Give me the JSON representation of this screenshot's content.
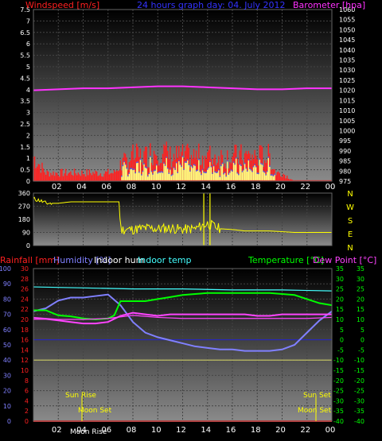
{
  "colors": {
    "wind": "#ff2020",
    "gust_fill": "#ffff80",
    "wind_avg": "#4060ff",
    "baro": "#ff33ff",
    "title": "#3333ff",
    "direction": "#ffff00",
    "rain": "#ff2020",
    "humidity": "#8080ff",
    "in_hum": "#ff44ff",
    "in_temp": "#44ffff",
    "temp": "#00ff00",
    "dew": "#ff44ff",
    "sun": "#ffff00"
  },
  "top": {
    "left_label": "Windspeed [m/s]",
    "title": "24 hours graph day: 04. July 2012",
    "right_label": "Barometer [hpa]",
    "left_ticks": [
      "0",
      "0.5",
      "1",
      "1.5",
      "2",
      "2.5",
      "3",
      "3.5",
      "4",
      "4.5",
      "5",
      "5.5",
      "6",
      "6.5",
      "7",
      "7.5"
    ],
    "right_ticks": [
      "975",
      "980",
      "985",
      "990",
      "995",
      "1000",
      "1005",
      "1010",
      "1015",
      "1020",
      "1025",
      "1030",
      "1035",
      "1040",
      "1045",
      "1050",
      "1055",
      "1060"
    ],
    "x_ticks": [
      "02",
      "04",
      "06",
      "08",
      "10",
      "12",
      "14",
      "16",
      "18",
      "20",
      "22",
      "00"
    ]
  },
  "dir": {
    "left_ticks": [
      "0",
      "90",
      "180",
      "270",
      "360"
    ],
    "right_labels": [
      "N",
      "W",
      "S",
      "E",
      "N"
    ]
  },
  "bottom": {
    "rain_label": "Rainfall [mm]",
    "hum_label": "Humidity [%]",
    "inhum_label": "Indoor hum",
    "intemp_label": "Indoor temp",
    "temp_label": "Temperature [°C]",
    "dew_label": "Dew Point [°C]",
    "hum_ticks": [
      "0",
      "10",
      "20",
      "30",
      "40",
      "50",
      "60",
      "70",
      "80",
      "90",
      "100"
    ],
    "rain_ticks": [
      "0",
      "2",
      "4",
      "6",
      "8",
      "10",
      "12",
      "14",
      "16",
      "18",
      "20",
      "22",
      "24",
      "26",
      "28",
      "30"
    ],
    "temp_ticks_a": [
      "-40",
      "-35",
      "-30",
      "-25",
      "-20",
      "-15",
      "-10",
      "-5",
      "0",
      "5",
      "10",
      "15",
      "20",
      "25",
      "30",
      "35"
    ],
    "temp_ticks_b": [
      "-40",
      "-35",
      "-30",
      "-25",
      "-20",
      "-15",
      "-10",
      "-5",
      "0",
      "5",
      "10",
      "15",
      "20",
      "25",
      "30",
      "35"
    ],
    "x_ticks": [
      "02",
      "04",
      "06",
      "08",
      "10",
      "12",
      "14",
      "16",
      "18",
      "20",
      "22",
      "00"
    ],
    "sun_rise": "Sun Rise",
    "sun_set": "Sun Set",
    "moon_set": "Moon Set",
    "moon_rise": "Moon Rise"
  },
  "chart_data": [
    {
      "type": "line",
      "title": "24 hours graph day: 04. July 2012",
      "xlabel": "",
      "ylabel": "Windspeed [m/s]",
      "y2label": "Barometer [hpa]",
      "x_unit": "hours",
      "ylim": [
        0,
        7.5
      ],
      "y2lim": [
        975,
        1060
      ],
      "series": [
        {
          "name": "Barometer [hpa]",
          "axis": "right",
          "x": [
            0,
            2,
            4,
            6,
            8,
            10,
            12,
            14,
            16,
            18,
            20,
            22,
            24
          ],
          "values": [
            1020,
            1020.5,
            1021,
            1021,
            1021.5,
            1022,
            1022,
            1021.5,
            1021,
            1020.5,
            1020.5,
            1021,
            1021
          ]
        },
        {
          "name": "Windspeed [m/s]",
          "axis": "left",
          "x": [
            0,
            1,
            2,
            3,
            4,
            5,
            6,
            6.5,
            7,
            8,
            9,
            10,
            11,
            12,
            13,
            14,
            15,
            16,
            17,
            18,
            19,
            19.5,
            20,
            21,
            22,
            23,
            24
          ],
          "values": [
            1.5,
            0.5,
            0.5,
            0.5,
            0.5,
            0.5,
            0.5,
            0.5,
            1.0,
            1.5,
            1.5,
            2.0,
            1.5,
            1.5,
            1.5,
            1.5,
            1.5,
            1.5,
            1.5,
            1.5,
            1.5,
            0.5,
            0.5,
            0,
            0,
            0,
            0
          ]
        }
      ]
    },
    {
      "type": "line",
      "ylabel": "Direction",
      "ylim": [
        0,
        360
      ],
      "series": [
        {
          "name": "Direction",
          "x": [
            0,
            0.5,
            1,
            2,
            3,
            4,
            5,
            6,
            6.9,
            7,
            8,
            9,
            10,
            11,
            12,
            13,
            14,
            15,
            16,
            17,
            18,
            19,
            20,
            21,
            22,
            23,
            24
          ],
          "values": [
            320,
            310,
            290,
            290,
            300,
            300,
            300,
            300,
            300,
            110,
            110,
            120,
            115,
            120,
            110,
            115,
            150,
            115,
            110,
            100,
            100,
            100,
            95,
            90,
            90,
            90,
            90
          ]
        }
      ]
    },
    {
      "type": "line",
      "ylabel": "Humidity [%]",
      "y2label": "Temperature [°C]",
      "ylim": [
        0,
        100
      ],
      "y2lim": [
        -40,
        35
      ],
      "series": [
        {
          "name": "Humidity [%]",
          "axis": "left",
          "x": [
            0,
            1,
            2,
            3,
            4,
            5,
            6,
            7,
            8,
            9,
            10,
            11,
            12,
            13,
            14,
            15,
            16,
            17,
            18,
            19,
            20,
            21,
            22,
            23,
            24
          ],
          "values": [
            72,
            74,
            79,
            81,
            81,
            82,
            83,
            76,
            65,
            58,
            55,
            53,
            51,
            49,
            48,
            47,
            47,
            46,
            46,
            46,
            47,
            50,
            58,
            66,
            72
          ]
        },
        {
          "name": "Indoor hum",
          "axis": "left",
          "x": [
            0,
            1,
            2,
            3,
            4,
            5,
            6,
            7,
            8,
            9,
            10,
            11,
            12,
            13,
            14,
            15,
            16,
            17,
            18,
            19,
            20,
            21,
            22,
            23,
            24
          ],
          "values": [
            67,
            67,
            66,
            65,
            64,
            64,
            65,
            69,
            71,
            70,
            69,
            70,
            70,
            70,
            70,
            70,
            70,
            70,
            69,
            69,
            70,
            70,
            70,
            70,
            70
          ]
        },
        {
          "name": "Indoor temp",
          "axis": "right",
          "x": [
            0,
            4,
            8,
            12,
            16,
            20,
            24
          ],
          "values": [
            26,
            25.5,
            25,
            25,
            24.5,
            24.5,
            24
          ]
        },
        {
          "name": "Temperature [°C]",
          "axis": "right",
          "x": [
            0,
            1,
            2,
            3,
            4,
            5,
            6,
            6.5,
            7,
            8,
            9,
            10,
            11,
            12,
            13,
            14,
            15,
            16,
            17,
            18,
            19,
            20,
            21,
            22,
            23,
            24
          ],
          "values": [
            14.5,
            14.5,
            12,
            11.5,
            10.5,
            10,
            10.5,
            12,
            19,
            19,
            19,
            20,
            21,
            22,
            22.5,
            23,
            23,
            23,
            23,
            23,
            23,
            22.5,
            22,
            20,
            18,
            17
          ]
        },
        {
          "name": "Dew Point [°C]",
          "axis": "right",
          "x": [
            0,
            2,
            4,
            6,
            8,
            10,
            12,
            14,
            16,
            18,
            20,
            22,
            24
          ],
          "values": [
            11,
            10,
            10,
            10.5,
            12,
            11,
            10.5,
            10.5,
            10.5,
            10.5,
            10.5,
            10.5,
            11
          ]
        },
        {
          "name": "Rainfall [mm]",
          "axis": "left",
          "x": [
            0,
            24
          ],
          "values": [
            0,
            0
          ]
        }
      ]
    }
  ]
}
